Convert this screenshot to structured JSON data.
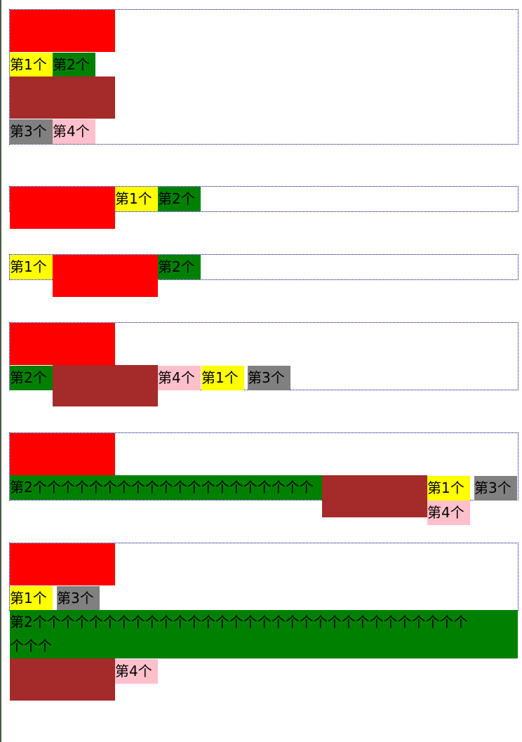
{
  "demo1": {
    "item1": "第1个",
    "item2": "第2个",
    "item3": "第3个",
    "item4": "第4个"
  },
  "demo2": {
    "item1": "第1个",
    "item2": "第2个"
  },
  "demo3": {
    "item1": "第1个",
    "item2": "第2个"
  },
  "demo4": {
    "item1": "第1个",
    "item2": "第2个",
    "item3": "第3个",
    "item4": "第4个"
  },
  "demo5": {
    "item2": "第2个个个个个个个个个个个个个个个个个个个个",
    "item1": "第1个",
    "item3": "第3个",
    "item4": "第4个"
  },
  "demo6": {
    "item1": "第1个",
    "item3": "第3个",
    "item2_line1": "第2个个个个个个个个个个个个个个个个个个个个个个个个个个个个个个个",
    "item2_line2": "个个个",
    "item4": "第4个"
  },
  "colors": {
    "red": "#ff0000",
    "brown": "#a52a2a",
    "yellow": "#ffff00",
    "green": "#008000",
    "gray": "#808080",
    "pink": "#ffc0cb",
    "border": "#000080"
  }
}
